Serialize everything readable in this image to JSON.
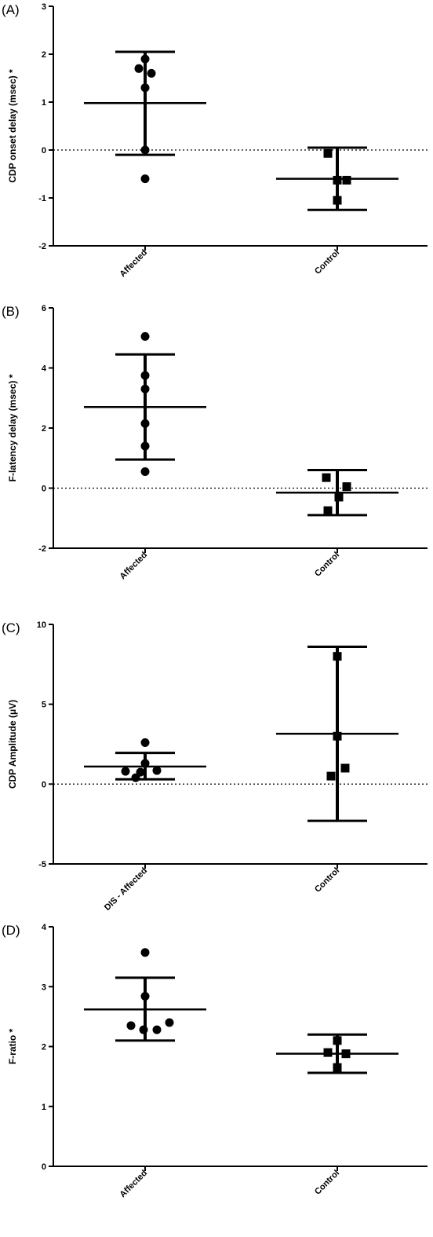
{
  "chart_data": [
    {
      "type": "scatter",
      "panel_label": "(A)",
      "ylabel": "CDP onset delay (msec) *",
      "ylim": [
        -2,
        3
      ],
      "yticks": [
        "3",
        "2",
        "1",
        "0",
        "-1",
        "-2"
      ],
      "categories": [
        "Affected",
        "Control"
      ],
      "zero_line": true,
      "groups": [
        {
          "name": "Affected",
          "marker": "circle",
          "points": [
            1.9,
            1.7,
            1.6,
            1.3,
            0.0,
            -0.6
          ],
          "mean": 0.98,
          "sd_upper": 2.05,
          "sd_lower": -0.1
        },
        {
          "name": "Control",
          "marker": "square",
          "points": [
            -0.07,
            -0.63,
            -0.63,
            -1.05
          ],
          "mean": -0.6,
          "sd_upper": 0.05,
          "sd_lower": -1.25
        }
      ]
    },
    {
      "type": "scatter",
      "panel_label": "(B)",
      "ylabel": "F-latency delay (msec) *",
      "ylim": [
        -2,
        6
      ],
      "yticks": [
        "6",
        "4",
        "2",
        "0",
        "-2"
      ],
      "categories": [
        "Affected",
        "Control"
      ],
      "zero_line": true,
      "groups": [
        {
          "name": "Affected",
          "marker": "circle",
          "points": [
            5.05,
            3.75,
            3.3,
            2.15,
            1.4,
            0.55
          ],
          "mean": 2.7,
          "sd_upper": 4.45,
          "sd_lower": 0.95
        },
        {
          "name": "Control",
          "marker": "square",
          "points": [
            0.35,
            0.05,
            -0.3,
            -0.75
          ],
          "mean": -0.15,
          "sd_upper": 0.6,
          "sd_lower": -0.9
        }
      ]
    },
    {
      "type": "scatter",
      "panel_label": "(C)",
      "ylabel": "CDP Amplitude (μV)",
      "ylim": [
        -5,
        10
      ],
      "yticks": [
        "10",
        "5",
        "0",
        "-5"
      ],
      "categories": [
        "DIS - Affected",
        "Control"
      ],
      "zero_line": true,
      "groups": [
        {
          "name": "DIS - Affected",
          "marker": "circle",
          "points": [
            2.6,
            1.3,
            0.85,
            0.8,
            0.75,
            0.4
          ],
          "mean": 1.1,
          "sd_upper": 1.95,
          "sd_lower": 0.3
        },
        {
          "name": "Control",
          "marker": "square",
          "points": [
            8.0,
            3.0,
            1.0,
            0.5
          ],
          "mean": 3.15,
          "sd_upper": 8.6,
          "sd_lower": -2.3
        }
      ]
    },
    {
      "type": "scatter",
      "panel_label": "(D)",
      "ylabel": "F-ratio *",
      "ylim": [
        0,
        4
      ],
      "yticks": [
        "4",
        "3",
        "2",
        "1",
        "0"
      ],
      "categories": [
        "Affected",
        "Control"
      ],
      "zero_line": false,
      "groups": [
        {
          "name": "Affected",
          "marker": "circle",
          "points": [
            3.57,
            2.84,
            2.4,
            2.35,
            2.28,
            2.28
          ],
          "mean": 2.62,
          "sd_upper": 3.15,
          "sd_lower": 2.1
        },
        {
          "name": "Control",
          "marker": "square",
          "points": [
            2.1,
            1.9,
            1.88,
            1.65
          ],
          "mean": 1.88,
          "sd_upper": 2.2,
          "sd_lower": 1.56
        }
      ]
    }
  ]
}
